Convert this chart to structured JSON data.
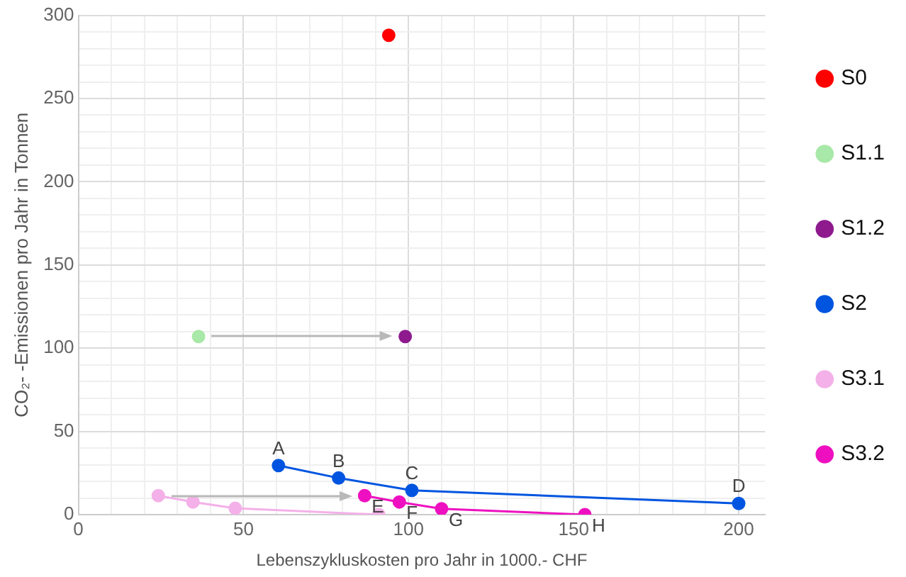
{
  "chart_data": {
    "type": "line",
    "xlabel": "Lebenszykluskosten pro Jahr in 1000.- CHF",
    "ylabel": "CO₂- -Emissionen pro Jahr in Tonnen",
    "xlim": [
      0,
      208
    ],
    "xticks": [
      0,
      {
        "value": 10,
        "label": null
      },
      {
        "value": 20,
        "label": null
      },
      {
        "value": 30,
        "label": null
      },
      {
        "value": 40,
        "label": null
      },
      50,
      {
        "value": 60,
        "label": null
      },
      {
        "value": 70,
        "label": null
      },
      {
        "value": 80,
        "label": null
      },
      {
        "value": 90,
        "label": null
      },
      100,
      {
        "value": 110,
        "label": null
      },
      {
        "value": 120,
        "label": null
      },
      {
        "value": 130,
        "label": null
      },
      {
        "value": 140,
        "label": null
      },
      150,
      {
        "value": 160,
        "label": null
      },
      {
        "value": 170,
        "label": null
      },
      {
        "value": 180,
        "label": null
      },
      {
        "value": 190,
        "label": null
      },
      200
    ],
    "ylim": [
      0,
      300
    ],
    "yticks": [
      0,
      {
        "value": 10,
        "label": null
      },
      {
        "value": 20,
        "label": null
      },
      {
        "value": 30,
        "label": null
      },
      {
        "value": 40,
        "label": null
      },
      50,
      {
        "value": 60,
        "label": null
      },
      {
        "value": 70,
        "label": null
      },
      {
        "value": 80,
        "label": null
      },
      {
        "value": 90,
        "label": null
      },
      100,
      {
        "value": 110,
        "label": null
      },
      {
        "value": 120,
        "label": null
      },
      {
        "value": 130,
        "label": null
      },
      {
        "value": 140,
        "label": null
      },
      150,
      {
        "value": 160,
        "label": null
      },
      {
        "value": 170,
        "label": null
      },
      {
        "value": 180,
        "label": null
      },
      {
        "value": 190,
        "label": null
      },
      200,
      {
        "value": 210,
        "label": null
      },
      {
        "value": 220,
        "label": null
      },
      {
        "value": 230,
        "label": null
      },
      {
        "value": 240,
        "label": null
      },
      250,
      {
        "value": 260,
        "label": null
      },
      {
        "value": 270,
        "label": null
      },
      {
        "value": 280,
        "label": null
      },
      {
        "value": 290,
        "label": null
      },
      300
    ],
    "series": [
      {
        "name": "S0",
        "color": "#ff0000",
        "x": [
          94
        ],
        "values": [
          288
        ]
      },
      {
        "name": "S1.1",
        "color": "#a8e8a8",
        "x": [
          36.4
        ],
        "values": [
          107
        ]
      },
      {
        "name": "S1.2",
        "color": "#8e1a8e",
        "x": [
          99
        ],
        "values": [
          107
        ]
      },
      {
        "name": "S2",
        "color": "#0055e0",
        "x": [
          60.6,
          78.8,
          101,
          200
        ],
        "values": [
          29.5,
          22,
          14.6,
          6.7
        ]
      },
      {
        "name": "S3.1",
        "color": "#f4b0e8",
        "x": [
          24.2,
          34.7,
          47.5,
          91
        ],
        "values": [
          11.4,
          7.6,
          3.8,
          0
        ]
      },
      {
        "name": "S3.2",
        "color": "#ee10c0",
        "x": [
          86.7,
          97.2,
          110,
          153.4
        ],
        "values": [
          11.4,
          7.6,
          3.5,
          0
        ]
      }
    ],
    "annotations": [
      {
        "text": "A",
        "x": 60.6,
        "y": 29.5
      },
      {
        "text": "B",
        "x": 78.8,
        "y": 22
      },
      {
        "text": "C",
        "x": 101,
        "y": 14.6
      },
      {
        "text": "D",
        "x": 200,
        "y": 6.7
      },
      {
        "text": "E",
        "x": 86.7,
        "y": 11.4
      },
      {
        "text": "F",
        "x": 97.2,
        "y": 7.6
      },
      {
        "text": "G",
        "x": 110,
        "y": 3.5
      },
      {
        "text": "H",
        "x": 153.4,
        "y": 0
      }
    ],
    "grid": true,
    "legend": "right",
    "marker": "circle",
    "line_style": "solid"
  }
}
